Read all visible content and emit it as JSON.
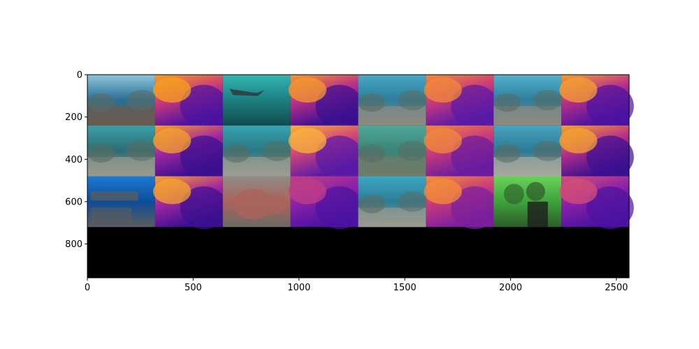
{
  "chart_data": {
    "type": "heatmap",
    "title": "",
    "xlabel": "",
    "ylabel": "",
    "description_kind": "image grid (imshow)",
    "image_extent": {
      "width": 2560,
      "height": 960
    },
    "xlim": [
      0,
      2560
    ],
    "ylim": [
      960,
      0
    ],
    "x_ticks": [
      0,
      500,
      1000,
      1500,
      2000,
      2500
    ],
    "x_tick_labels": [
      "0",
      "500",
      "1000",
      "1500",
      "2000",
      "2500"
    ],
    "y_ticks": [
      0,
      200,
      400,
      600,
      800
    ],
    "y_tick_labels": [
      "0",
      "200",
      "400",
      "600",
      "800"
    ],
    "grid": false,
    "tile_size": {
      "width": 320,
      "height": 240
    },
    "rows": 3,
    "cols": 8,
    "empty_region_color": "#000000",
    "tiles": [
      {
        "row": 0,
        "col": 0,
        "kind": "photo",
        "scene": "coral-reef",
        "colors": [
          "#8fc4dc",
          "#2a6f93",
          "#6b5a4f"
        ]
      },
      {
        "row": 0,
        "col": 1,
        "kind": "depth",
        "scene": "depth-map",
        "colors": [
          "#f7a21e",
          "#c8397c",
          "#4c12a0"
        ]
      },
      {
        "row": 0,
        "col": 2,
        "kind": "photo",
        "scene": "shark",
        "colors": [
          "#34b5b3",
          "#1c7f80",
          "#0f4d4c"
        ]
      },
      {
        "row": 0,
        "col": 3,
        "kind": "depth",
        "scene": "depth-map",
        "colors": [
          "#f59a2c",
          "#b62f8a",
          "#3b0f90"
        ]
      },
      {
        "row": 0,
        "col": 4,
        "kind": "photo",
        "scene": "diver-reef",
        "colors": [
          "#49a7c4",
          "#2d7e9c",
          "#8d8a80"
        ]
      },
      {
        "row": 0,
        "col": 5,
        "kind": "depth",
        "scene": "depth-map",
        "colors": [
          "#f08a3a",
          "#c8397c",
          "#5a1aa5"
        ]
      },
      {
        "row": 0,
        "col": 6,
        "kind": "photo",
        "scene": "diver-reef",
        "colors": [
          "#56b1cc",
          "#2d7e9c",
          "#8d8a80"
        ]
      },
      {
        "row": 0,
        "col": 7,
        "kind": "depth",
        "scene": "depth-map",
        "colors": [
          "#f5a030",
          "#b62f8a",
          "#4c12a0"
        ]
      },
      {
        "row": 1,
        "col": 0,
        "kind": "photo",
        "scene": "diver-reef",
        "colors": [
          "#3c9fa6",
          "#2b6d73",
          "#9a9a8e"
        ]
      },
      {
        "row": 1,
        "col": 1,
        "kind": "depth",
        "scene": "depth-map",
        "colors": [
          "#f6a32a",
          "#a227a0",
          "#3b0f90"
        ]
      },
      {
        "row": 1,
        "col": 2,
        "kind": "photo",
        "scene": "reef-floor",
        "colors": [
          "#3aa3b0",
          "#277884",
          "#9c9c90"
        ]
      },
      {
        "row": 1,
        "col": 3,
        "kind": "depth",
        "scene": "depth-map",
        "colors": [
          "#f9b43a",
          "#d0457a",
          "#5a1aa5"
        ]
      },
      {
        "row": 1,
        "col": 4,
        "kind": "photo",
        "scene": "fish",
        "colors": [
          "#4fa79a",
          "#3a8477",
          "#6f7c6a"
        ]
      },
      {
        "row": 1,
        "col": 5,
        "kind": "depth",
        "scene": "depth-map",
        "colors": [
          "#f18a3c",
          "#c8397c",
          "#6a1c9e"
        ]
      },
      {
        "row": 1,
        "col": 6,
        "kind": "photo",
        "scene": "diver-reef",
        "colors": [
          "#4aa3c0",
          "#2a7a93",
          "#a8a89c"
        ]
      },
      {
        "row": 1,
        "col": 7,
        "kind": "depth",
        "scene": "depth-map",
        "colors": [
          "#f6a52c",
          "#b62f8a",
          "#3b0f90"
        ]
      },
      {
        "row": 2,
        "col": 0,
        "kind": "photo",
        "scene": "shipwreck",
        "colors": [
          "#1c79d2",
          "#0d4d9a",
          "#5c5c5c"
        ]
      },
      {
        "row": 2,
        "col": 1,
        "kind": "depth",
        "scene": "depth-map",
        "colors": [
          "#f7a52a",
          "#a227a0",
          "#3b0f90"
        ]
      },
      {
        "row": 2,
        "col": 2,
        "kind": "photo",
        "scene": "coral-closeup",
        "colors": [
          "#8f8b86",
          "#a9645c",
          "#6b6a64"
        ]
      },
      {
        "row": 2,
        "col": 3,
        "kind": "depth",
        "scene": "depth-map",
        "colors": [
          "#c23f86",
          "#8a21a8",
          "#4c12a0"
        ]
      },
      {
        "row": 2,
        "col": 4,
        "kind": "photo",
        "scene": "reef-floor",
        "colors": [
          "#3ea6c3",
          "#2a7d96",
          "#9a9a8e"
        ]
      },
      {
        "row": 2,
        "col": 5,
        "kind": "depth",
        "scene": "depth-map",
        "colors": [
          "#f39037",
          "#c8397c",
          "#7a1f9c"
        ]
      },
      {
        "row": 2,
        "col": 6,
        "kind": "photo",
        "scene": "selfie",
        "colors": [
          "#6bd25a",
          "#3ea33c",
          "#2d5a2a"
        ]
      },
      {
        "row": 2,
        "col": 7,
        "kind": "depth",
        "scene": "depth-map",
        "colors": [
          "#d64f76",
          "#8a21a8",
          "#4c12a0"
        ]
      }
    ]
  }
}
